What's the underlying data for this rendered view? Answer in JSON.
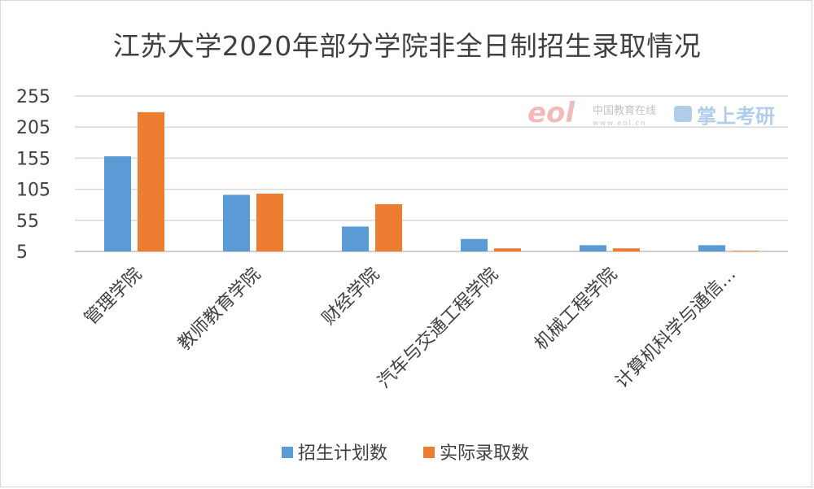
{
  "chart_data": {
    "type": "bar",
    "title": "江苏大学2020年部分学院非全日制招生录取情况",
    "categories": [
      "管理学院",
      "教师教育学院",
      "财经学院",
      "汽车与交通工程学院",
      "机械工程学院",
      "计算机科学与通信…"
    ],
    "series": [
      {
        "name": "招生计划数",
        "color": "#5b9bd5",
        "values": [
          158,
          96,
          45,
          25,
          15,
          15
        ]
      },
      {
        "name": "实际录取数",
        "color": "#ed7d31",
        "values": [
          229,
          98,
          81,
          10,
          10,
          6
        ]
      }
    ],
    "yticks": [
      5,
      55,
      105,
      155,
      205,
      255
    ],
    "ylim": [
      5,
      255
    ],
    "grid": true,
    "legend_position": "bottom"
  },
  "watermark": {
    "logo_text": "eol",
    "cn_name": "中国教育在线",
    "url": "www.eol.cn",
    "brand": "掌上考研",
    "brand_color": "#9dc3e6"
  }
}
